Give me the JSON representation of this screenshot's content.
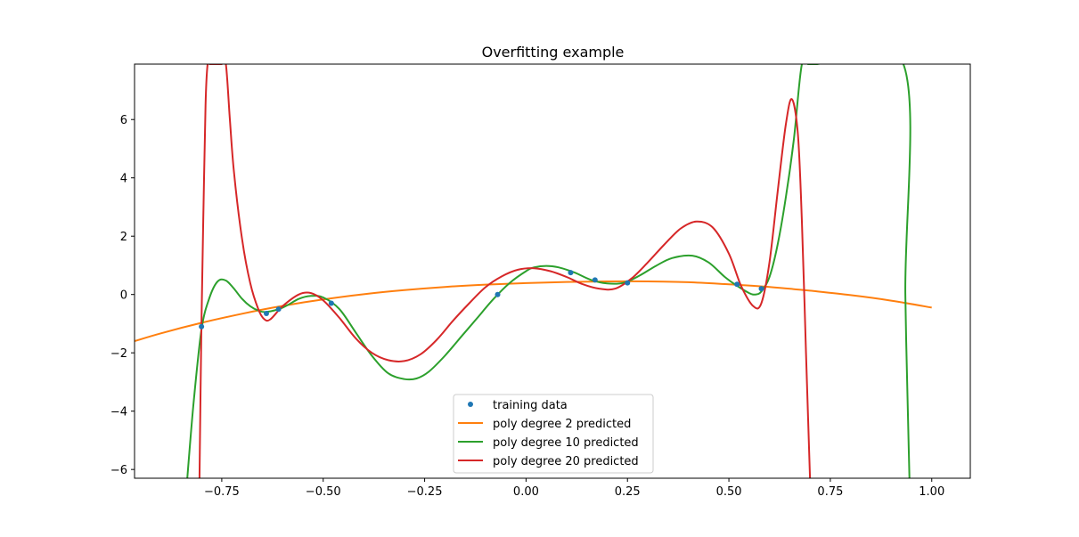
{
  "chart_data": {
    "type": "line",
    "title": "Overfitting example",
    "xlabel": "",
    "ylabel": "",
    "xlim": [
      -0.965,
      1.095
    ],
    "ylim": [
      -6.3,
      7.9
    ],
    "x_ticks": [
      -0.75,
      -0.5,
      -0.25,
      0.0,
      0.25,
      0.5,
      0.75,
      1.0
    ],
    "x_tick_labels": [
      "−0.75",
      "−0.50",
      "−0.25",
      "0.00",
      "0.25",
      "0.50",
      "0.75",
      "1.00"
    ],
    "y_ticks": [
      -6,
      -4,
      -2,
      0,
      2,
      4,
      6
    ],
    "y_tick_labels": [
      "−6",
      "−4",
      "−2",
      "0",
      "2",
      "4",
      "6"
    ],
    "grid": false,
    "legend_position": "lower-center",
    "series": [
      {
        "name": "training data",
        "kind": "scatter",
        "color": "#1f77b4",
        "x": [
          -0.8,
          -0.64,
          -0.61,
          -0.48,
          -0.07,
          0.11,
          0.17,
          0.25,
          0.52,
          0.58
        ],
        "y": [
          -1.1,
          -0.65,
          -0.5,
          -0.3,
          0.0,
          0.75,
          0.5,
          0.4,
          0.35,
          0.2
        ]
      },
      {
        "name": "poly degree 2 predicted",
        "kind": "line",
        "color": "#ff7f0e",
        "x": [
          -0.965,
          -0.9,
          -0.8,
          -0.7,
          -0.6,
          -0.5,
          -0.4,
          -0.3,
          -0.2,
          -0.1,
          0.0,
          0.1,
          0.2,
          0.3,
          0.4,
          0.5,
          0.6,
          0.7,
          0.8,
          0.9,
          1.0
        ],
        "y": [
          -1.6,
          -1.33,
          -0.97,
          -0.66,
          -0.39,
          -0.17,
          0.01,
          0.15,
          0.26,
          0.34,
          0.39,
          0.43,
          0.45,
          0.45,
          0.42,
          0.35,
          0.26,
          0.13,
          -0.02,
          -0.21,
          -0.45
        ]
      },
      {
        "name": "poly degree 10 predicted",
        "kind": "line",
        "color": "#2ca02c",
        "x": [
          -0.835,
          -0.82,
          -0.8,
          -0.78,
          -0.76,
          -0.74,
          -0.72,
          -0.7,
          -0.68,
          -0.66,
          -0.64,
          -0.6,
          -0.56,
          -0.53,
          -0.5,
          -0.46,
          -0.42,
          -0.38,
          -0.34,
          -0.3,
          -0.27,
          -0.24,
          -0.2,
          -0.16,
          -0.12,
          -0.08,
          -0.04,
          0.0,
          0.02,
          0.05,
          0.08,
          0.12,
          0.16,
          0.2,
          0.24,
          0.28,
          0.32,
          0.36,
          0.41,
          0.45,
          0.49,
          0.52,
          0.55,
          0.565,
          0.58,
          0.6,
          0.62,
          0.64,
          0.66,
          0.68,
          0.7,
          0.715,
          0.93,
          0.935,
          0.945
        ],
        "y": [
          -6.3,
          -3.8,
          -1.2,
          -0.1,
          0.45,
          0.48,
          0.2,
          -0.15,
          -0.4,
          -0.55,
          -0.6,
          -0.45,
          -0.15,
          -0.05,
          -0.1,
          -0.5,
          -1.3,
          -2.1,
          -2.7,
          -2.9,
          -2.88,
          -2.65,
          -2.1,
          -1.45,
          -0.8,
          -0.15,
          0.4,
          0.8,
          0.93,
          0.98,
          0.93,
          0.75,
          0.5,
          0.38,
          0.4,
          0.65,
          0.98,
          1.25,
          1.33,
          1.1,
          0.6,
          0.3,
          0.05,
          0.0,
          0.1,
          0.6,
          1.7,
          3.3,
          5.3,
          7.9,
          7.9,
          7.9,
          7.9,
          0.0,
          -6.3
        ]
      },
      {
        "name": "poly degree 20 predicted",
        "kind": "line",
        "color": "#d62728",
        "x": [
          -0.805,
          -0.8,
          -0.795,
          -0.79,
          -0.785,
          -0.78,
          -0.775,
          -0.77,
          -0.765,
          -0.76,
          -0.75,
          -0.74,
          -0.73,
          -0.72,
          -0.7,
          -0.68,
          -0.66,
          -0.645,
          -0.63,
          -0.6,
          -0.56,
          -0.53,
          -0.5,
          -0.46,
          -0.42,
          -0.38,
          -0.34,
          -0.3,
          -0.26,
          -0.22,
          -0.18,
          -0.14,
          -0.1,
          -0.06,
          -0.02,
          0.02,
          0.06,
          0.1,
          0.14,
          0.18,
          0.22,
          0.26,
          0.3,
          0.34,
          0.38,
          0.42,
          0.46,
          0.5,
          0.53,
          0.56,
          0.58,
          0.6,
          0.62,
          0.64,
          0.655,
          0.67,
          0.68,
          0.69,
          0.7
        ],
        "y": [
          -6.3,
          -1.0,
          3.0,
          6.5,
          7.9,
          7.9,
          7.9,
          7.9,
          7.9,
          7.9,
          7.9,
          7.9,
          6.0,
          4.2,
          1.9,
          0.4,
          -0.5,
          -0.85,
          -0.85,
          -0.4,
          0.0,
          0.05,
          -0.2,
          -0.8,
          -1.5,
          -2.0,
          -2.25,
          -2.28,
          -2.05,
          -1.55,
          -0.9,
          -0.3,
          0.25,
          0.62,
          0.85,
          0.9,
          0.8,
          0.6,
          0.35,
          0.2,
          0.2,
          0.55,
          1.1,
          1.7,
          2.25,
          2.5,
          2.3,
          1.4,
          0.3,
          -0.4,
          -0.3,
          1.1,
          3.5,
          5.8,
          6.7,
          5.5,
          2.5,
          -2.0,
          -6.3
        ]
      }
    ]
  }
}
